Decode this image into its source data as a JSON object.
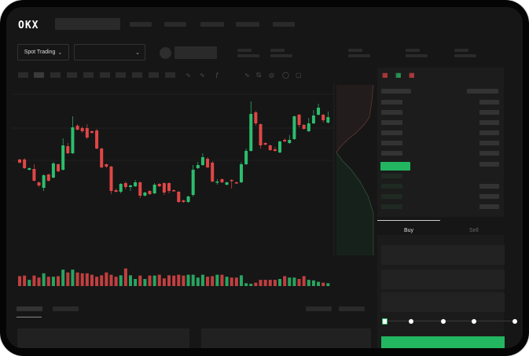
{
  "header": {
    "logo": "OKX"
  },
  "market_bar": {
    "mode_select": "Spot Trading"
  },
  "order_form": {
    "tabs": [
      {
        "label": "Buy",
        "active": true
      },
      {
        "label": "Sell",
        "active": false
      }
    ],
    "leverage_slider_level": 0
  },
  "colors": {
    "up": "#2dbd6e",
    "down": "#e04646",
    "background": "#161616",
    "accent": "#22b660"
  },
  "chart_data": {
    "type": "candlestick",
    "candles": [
      [
        127,
        128,
        122,
        123
      ],
      [
        127,
        129,
        115,
        116
      ],
      [
        114,
        117,
        113,
        116
      ],
      [
        115,
        121,
        99,
        100
      ],
      [
        98,
        99,
        92,
        94
      ],
      [
        91,
        108,
        87,
        107
      ],
      [
        108,
        109,
        99,
        100
      ],
      [
        104,
        124,
        103,
        122
      ],
      [
        121,
        122,
        111,
        112
      ],
      [
        114,
        154,
        113,
        145
      ],
      [
        144,
        148,
        134,
        135
      ],
      [
        135,
        182,
        134,
        168
      ],
      [
        170,
        172,
        164,
        165
      ],
      [
        167,
        169,
        161,
        163
      ],
      [
        167,
        172,
        153,
        155
      ],
      [
        163,
        164,
        160,
        161
      ],
      [
        164,
        166,
        140,
        141
      ],
      [
        141,
        142,
        116,
        117
      ],
      [
        121,
        122,
        116,
        118
      ],
      [
        118,
        119,
        83,
        87
      ],
      [
        88,
        90,
        85,
        86
      ],
      [
        86,
        97,
        84,
        96
      ],
      [
        97,
        99,
        89,
        92
      ],
      [
        92,
        95,
        87,
        94
      ],
      [
        93,
        101,
        92,
        98
      ],
      [
        98,
        99,
        78,
        81
      ],
      [
        81,
        86,
        80,
        85
      ],
      [
        87,
        88,
        82,
        83
      ],
      [
        84,
        97,
        83,
        95
      ],
      [
        96,
        97,
        92,
        93
      ],
      [
        97,
        98,
        82,
        85
      ],
      [
        97,
        98,
        84,
        87
      ],
      [
        88,
        89,
        86,
        87
      ],
      [
        86,
        87,
        72,
        73
      ],
      [
        75,
        76,
        72,
        73
      ],
      [
        73,
        81,
        72,
        80
      ],
      [
        82,
        120,
        80,
        114
      ],
      [
        116,
        124,
        115,
        120
      ],
      [
        120,
        135,
        119,
        130
      ],
      [
        128,
        130,
        116,
        117
      ],
      [
        123,
        125,
        98,
        99
      ],
      [
        98,
        102,
        95,
        99
      ],
      [
        102,
        103,
        97,
        98
      ],
      [
        95,
        99,
        94,
        98
      ],
      [
        101,
        102,
        90,
        100
      ],
      [
        98,
        99,
        96,
        97
      ],
      [
        98,
        124,
        97,
        121
      ],
      [
        121,
        141,
        120,
        138
      ],
      [
        138,
        201,
        137,
        185
      ],
      [
        187,
        189,
        170,
        173
      ],
      [
        172,
        173,
        141,
        145
      ],
      [
        148,
        149,
        145,
        146
      ],
      [
        145,
        146,
        138,
        139
      ],
      [
        140,
        143,
        137,
        138
      ],
      [
        136,
        151,
        135,
        150
      ],
      [
        152,
        154,
        149,
        150
      ],
      [
        148,
        158,
        147,
        152
      ],
      [
        153,
        183,
        152,
        182
      ],
      [
        184,
        185,
        168,
        171
      ],
      [
        171,
        172,
        165,
        166
      ],
      [
        163,
        180,
        162,
        173
      ],
      [
        173,
        190,
        172,
        183
      ],
      [
        184,
        198,
        183,
        193
      ],
      [
        184,
        185,
        174,
        177
      ],
      [
        174,
        188,
        173,
        181
      ]
    ],
    "candle_format": [
      "open",
      "high",
      "low",
      "close"
    ],
    "volume": [
      35,
      37,
      22,
      37,
      30,
      45,
      33,
      33,
      35,
      58,
      48,
      58,
      48,
      45,
      45,
      40,
      33,
      38,
      48,
      40,
      33,
      38,
      62,
      38,
      25,
      37,
      25,
      37,
      37,
      40,
      27,
      38,
      37,
      40,
      37,
      40,
      40,
      30,
      40,
      33,
      35,
      40,
      40,
      33,
      30,
      30,
      38,
      10,
      8,
      12,
      22,
      22,
      22,
      22,
      25,
      35,
      30,
      30,
      25,
      35,
      22,
      20,
      15,
      12,
      10
    ]
  }
}
